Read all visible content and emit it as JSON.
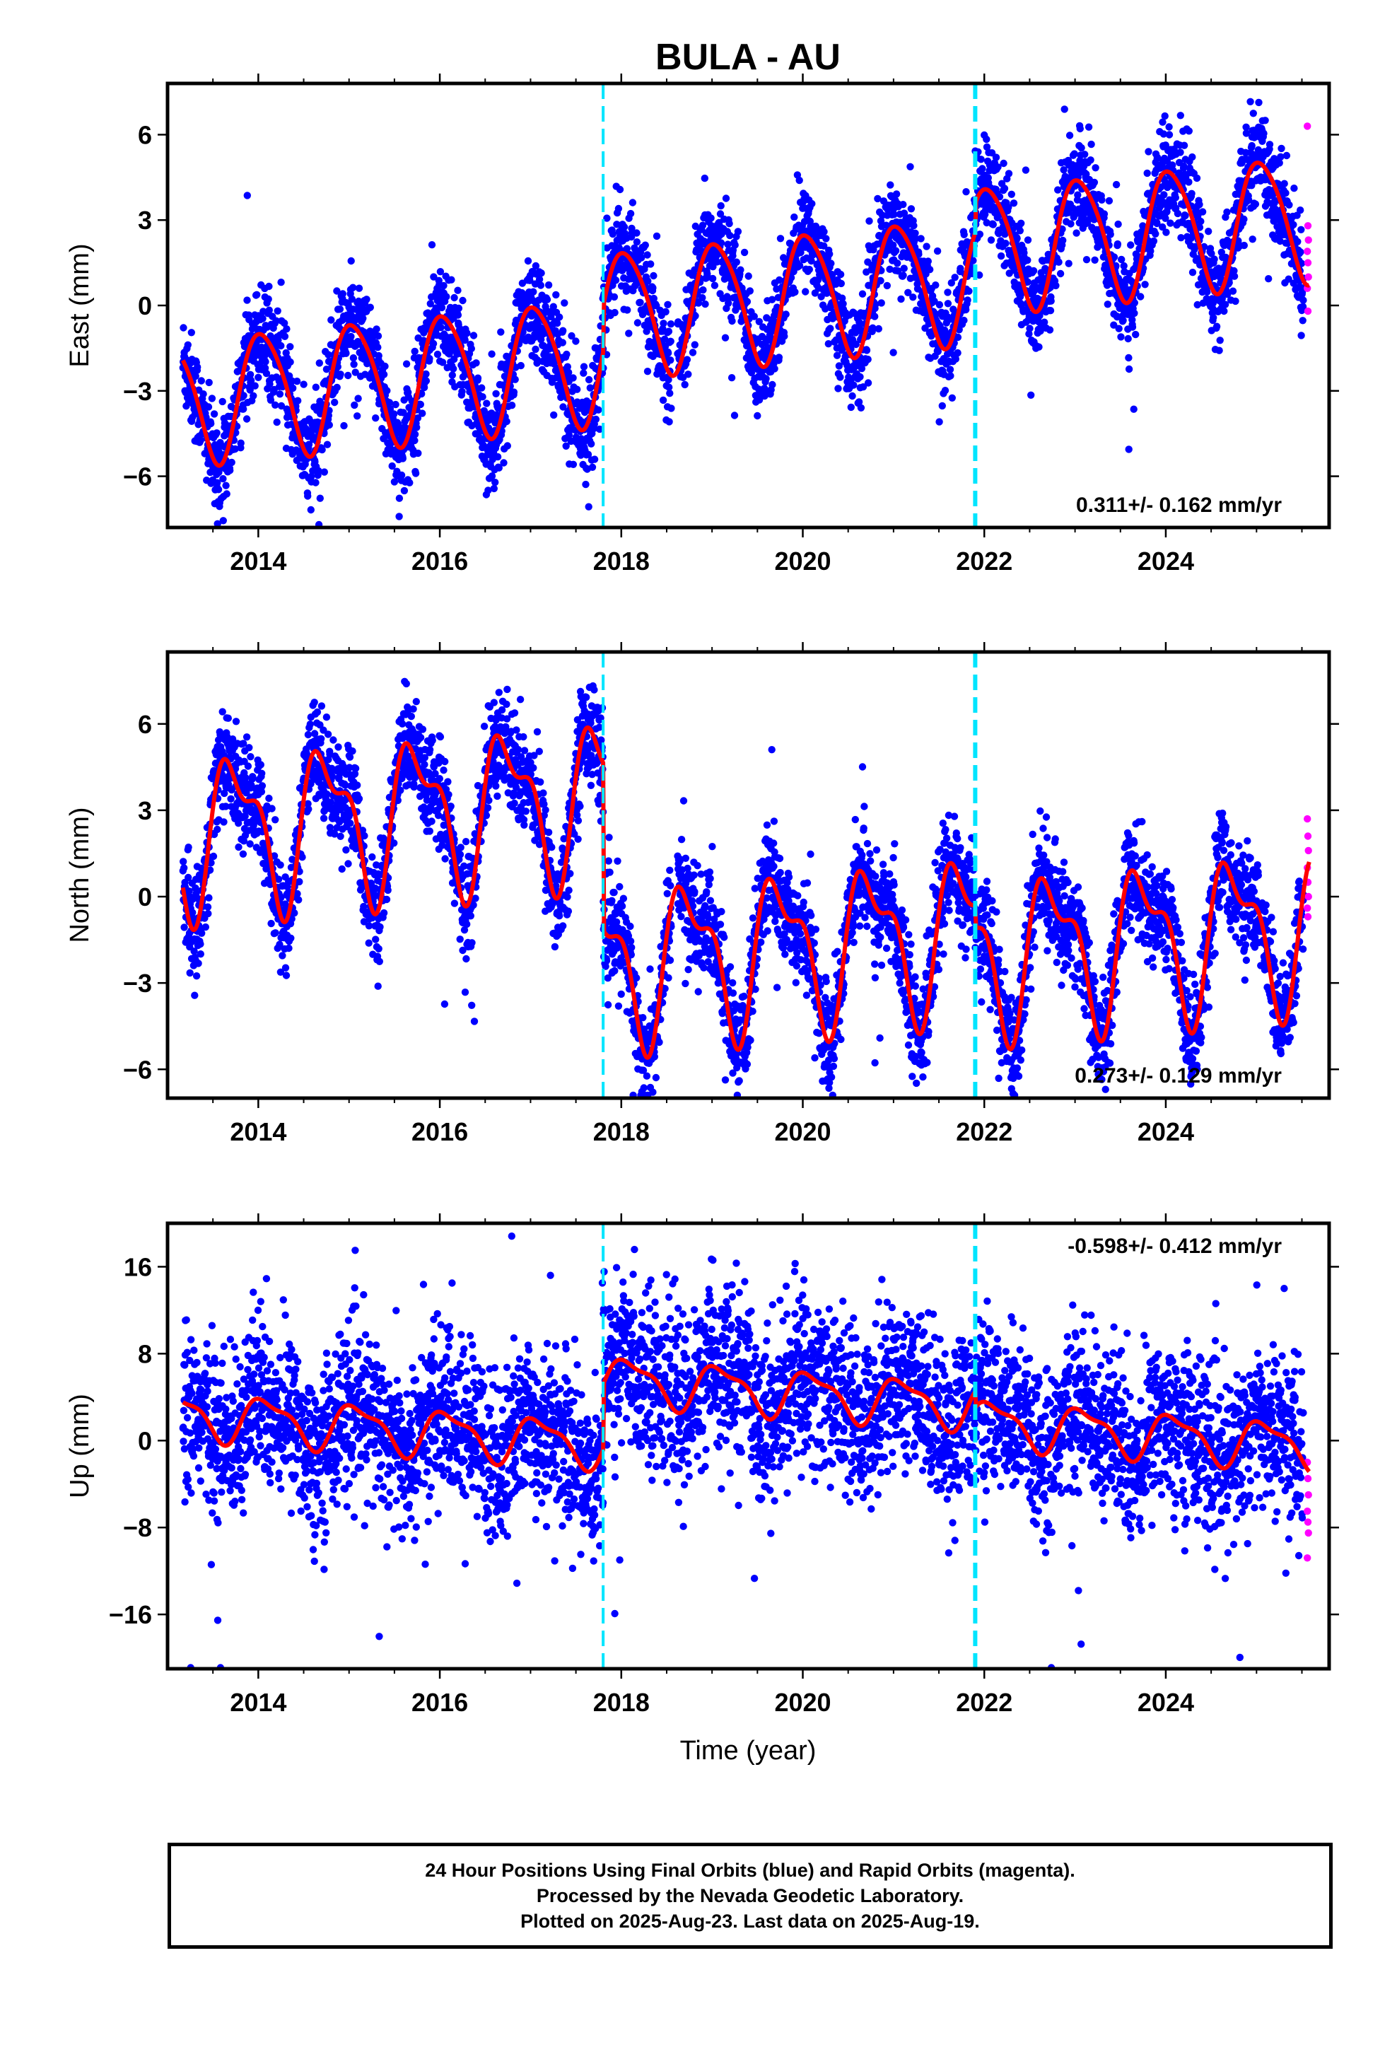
{
  "title": "BULA - AU",
  "xlabel": "Time (year)",
  "footer": {
    "line1": "24 Hour Positions Using Final Orbits (blue) and Rapid Orbits (magenta).",
    "line2": "Processed by the Nevada Geodetic Laboratory.",
    "line3": "Plotted on 2025-Aug-23. Last data on 2025-Aug-19."
  },
  "colors": {
    "final_orbits": "#0000ff",
    "rapid_orbits": "#ff00ff",
    "model": "#ff0000",
    "offsets": "#00e5ff"
  },
  "chart_data": [
    {
      "type": "scatter",
      "panel": "east",
      "ylabel": "East (mm)",
      "xlim": [
        2013.0,
        2025.8
      ],
      "ylim": [
        -7.8,
        7.8
      ],
      "x_ticks": [
        2014,
        2016,
        2018,
        2020,
        2022,
        2024
      ],
      "y_ticks": [
        -6,
        -3,
        0,
        3,
        6
      ],
      "rate_label": "0.311+/- 0.162 mm/yr",
      "offsets": [
        2017.8,
        2021.9
      ],
      "model": {
        "trend": 0.311,
        "offset": -3.3,
        "annual_amp": 2.2,
        "annual_phase": 2013.8,
        "semiannual_amp": 0.3,
        "steps": [
          {
            "t": 2017.8,
            "dy": 1.6
          },
          {
            "t": 2021.9,
            "dy": 1.0
          }
        ]
      },
      "scatter_noise": 0.85,
      "rapid_values": [
        6.3,
        2.8,
        2.3,
        1.9,
        1.5,
        1.0,
        0.6,
        -0.2
      ]
    },
    {
      "type": "scatter",
      "panel": "north",
      "ylabel": "North (mm)",
      "xlim": [
        2013.0,
        2025.8
      ],
      "ylim": [
        -7.0,
        8.5
      ],
      "x_ticks": [
        2014,
        2016,
        2018,
        2020,
        2022,
        2024
      ],
      "y_ticks": [
        -6,
        -3,
        0,
        3,
        6
      ],
      "rate_label": "0.273+/- 0.129 mm/yr",
      "offsets": [
        2017.8,
        2021.9
      ],
      "model": {
        "trend": 0.273,
        "offset": 2.2,
        "annual_amp": 2.4,
        "annual_phase": 2013.5,
        "semiannual_amp": 1.1,
        "steps": [
          {
            "t": 2017.8,
            "dy": -5.8
          },
          {
            "t": 2021.9,
            "dy": -0.8
          }
        ]
      },
      "scatter_noise": 0.9,
      "rapid_values": [
        2.7,
        2.1,
        1.6,
        1.0,
        0.5,
        0.0,
        -0.4,
        -0.7
      ]
    },
    {
      "type": "scatter",
      "panel": "up",
      "ylabel": "Up (mm)",
      "xlim": [
        2013.0,
        2025.8
      ],
      "ylim": [
        -21.0,
        20.0
      ],
      "x_ticks": [
        2014,
        2016,
        2018,
        2020,
        2022,
        2024
      ],
      "y_ticks": [
        -16,
        -8,
        0,
        8,
        16
      ],
      "rate_label": "-0.598+/- 0.412 mm/yr",
      "offsets": [
        2017.8,
        2021.9
      ],
      "model": {
        "trend": -0.598,
        "offset": 2.4,
        "annual_amp": 2.0,
        "annual_phase": 2013.85,
        "semiannual_amp": 0.7,
        "steps": [
          {
            "t": 2017.8,
            "dy": 6.0
          },
          {
            "t": 2021.9,
            "dy": -1.5
          }
        ]
      },
      "scatter_noise": 3.8,
      "rapid_values": [
        -2.0,
        -3.5,
        -5.0,
        -6.5,
        -7.5,
        -8.5,
        -10.8
      ]
    }
  ]
}
